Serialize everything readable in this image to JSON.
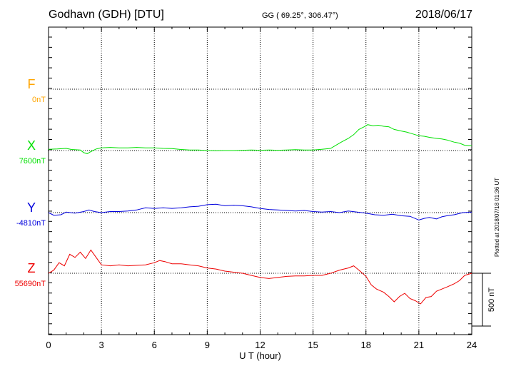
{
  "header": {
    "title": "Godhavn (GDH)  [DTU]",
    "coords": "GG ( 69.25°, 306.47°)",
    "date": "2018/06/17"
  },
  "footer": {
    "plotted_note": "Plotted at 2018/07/18 01:36 UT"
  },
  "chart_data": {
    "type": "line",
    "xlabel": "U T (hour)",
    "xlim": [
      0,
      24
    ],
    "xticks": [
      0,
      3,
      6,
      9,
      12,
      15,
      18,
      21,
      24
    ],
    "scale_bar_label": "500 nT",
    "scale_bar_nT": 500,
    "series": [
      {
        "name": "F",
        "baseline_label": "0nT",
        "color": "#ffa500",
        "x": [],
        "y": []
      },
      {
        "name": "X",
        "baseline_label": "7600nT",
        "color": "#00e000",
        "x": [
          0,
          0.5,
          1,
          1.3,
          1.8,
          2.0,
          2.2,
          2.4,
          2.7,
          3,
          3.5,
          4,
          4.5,
          5,
          5.5,
          6,
          6.5,
          7,
          7.5,
          8,
          8.5,
          9,
          9.5,
          10,
          10.5,
          11,
          11.5,
          12,
          12.5,
          13,
          13.5,
          14,
          14.5,
          15,
          15.5,
          16,
          16.3,
          16.6,
          17,
          17.3,
          17.6,
          17.9,
          18.1,
          18.4,
          18.7,
          19,
          19.3,
          19.6,
          20,
          20.3,
          20.6,
          21,
          21.3,
          21.6,
          22,
          22.3,
          22.6,
          23,
          23.3,
          23.6,
          24
        ],
        "y": [
          7612,
          7615,
          7620,
          7610,
          7605,
          7580,
          7570,
          7590,
          7615,
          7625,
          7630,
          7625,
          7625,
          7630,
          7625,
          7625,
          7620,
          7618,
          7610,
          7605,
          7605,
          7600,
          7598,
          7600,
          7600,
          7603,
          7605,
          7603,
          7605,
          7603,
          7605,
          7608,
          7605,
          7605,
          7612,
          7620,
          7650,
          7680,
          7715,
          7750,
          7800,
          7825,
          7845,
          7835,
          7840,
          7830,
          7825,
          7800,
          7785,
          7775,
          7760,
          7740,
          7735,
          7725,
          7715,
          7710,
          7700,
          7680,
          7670,
          7650,
          7645
        ]
      },
      {
        "name": "Y",
        "baseline_label": "-4810nT",
        "color": "#0000dd",
        "x": [
          0,
          0.3,
          0.7,
          1,
          1.5,
          2,
          2.3,
          2.6,
          3,
          3.5,
          4,
          4.5,
          5,
          5.5,
          6,
          6.5,
          7,
          7.5,
          8,
          8.5,
          9,
          9.5,
          10,
          10.5,
          11,
          11.5,
          12,
          12.5,
          13,
          13.5,
          14,
          14.5,
          15,
          15.5,
          16,
          16.5,
          17,
          17.5,
          18,
          18.5,
          19,
          19.5,
          20,
          20.5,
          21,
          21.3,
          21.6,
          22,
          22.3,
          22.6,
          23,
          23.5,
          24
        ],
        "y": [
          -4810,
          -4835,
          -4830,
          -4805,
          -4815,
          -4800,
          -4785,
          -4800,
          -4810,
          -4800,
          -4800,
          -4795,
          -4785,
          -4765,
          -4770,
          -4765,
          -4770,
          -4765,
          -4755,
          -4750,
          -4735,
          -4730,
          -4745,
          -4740,
          -4745,
          -4755,
          -4770,
          -4780,
          -4785,
          -4790,
          -4795,
          -4790,
          -4800,
          -4805,
          -4800,
          -4810,
          -4795,
          -4805,
          -4815,
          -4830,
          -4835,
          -4825,
          -4840,
          -4845,
          -4880,
          -4865,
          -4855,
          -4870,
          -4850,
          -4840,
          -4830,
          -4810,
          -4805
        ]
      },
      {
        "name": "Z",
        "baseline_label": "55690nT",
        "color": "#ee0000",
        "x": [
          0,
          0.3,
          0.6,
          0.9,
          1.2,
          1.5,
          1.8,
          2.1,
          2.4,
          2.7,
          3,
          3.5,
          4,
          4.5,
          5,
          5.5,
          6,
          6.3,
          6.6,
          7,
          7.5,
          8,
          8.5,
          9,
          9.5,
          10,
          10.5,
          11,
          11.5,
          12,
          12.5,
          13,
          13.5,
          14,
          14.5,
          15,
          15.5,
          16,
          16.5,
          17,
          17.3,
          17.6,
          18,
          18.3,
          18.6,
          19,
          19.3,
          19.6,
          19.9,
          20.2,
          20.5,
          20.8,
          21.1,
          21.4,
          21.7,
          22,
          22.3,
          22.6,
          23,
          23.3,
          23.6,
          24
        ],
        "y": [
          55690,
          55720,
          55790,
          55760,
          55870,
          55840,
          55890,
          55830,
          55910,
          55840,
          55770,
          55760,
          55770,
          55760,
          55765,
          55770,
          55790,
          55810,
          55800,
          55780,
          55780,
          55770,
          55760,
          55740,
          55730,
          55710,
          55700,
          55690,
          55670,
          55650,
          55640,
          55650,
          55660,
          55665,
          55665,
          55670,
          55670,
          55690,
          55720,
          55740,
          55760,
          55720,
          55660,
          55580,
          55540,
          55510,
          55470,
          55420,
          55470,
          55500,
          55450,
          55430,
          55400,
          55460,
          55470,
          55520,
          55540,
          55560,
          55590,
          55620,
          55670,
          55690
        ]
      }
    ]
  }
}
